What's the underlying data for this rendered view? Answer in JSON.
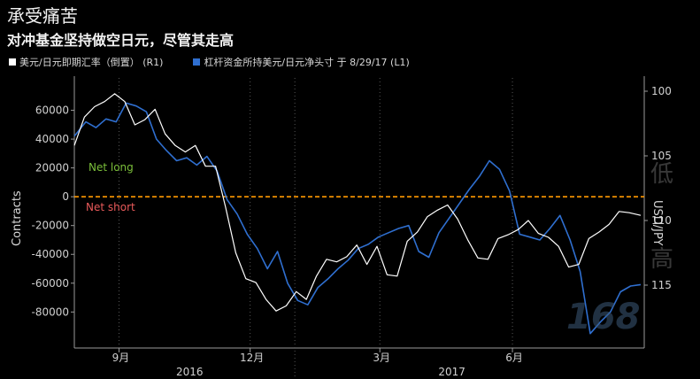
{
  "title": "承受痛苦",
  "subtitle": "对冲基金坚持做空日元，尽管其走高",
  "legend": {
    "left_series": "美元/日元即期汇率（倒置） (R1)",
    "right_series": "杠杆资金所持美元/日元净头寸 于 8/29/17 (L1)"
  },
  "annotations": {
    "net_long": "Net long",
    "net_short": "Net short"
  },
  "watermark": {
    "chars": [
      "低",
      "高"
    ],
    "number": "168"
  },
  "colors": {
    "usdjpy": "#ffffff",
    "positions": "#2f6fd0",
    "zero_line": "#ff9900",
    "net_long": "#7bbf3a",
    "net_short": "#e85a5a"
  },
  "chart_data": {
    "type": "line",
    "x_range": [
      "2016-08-01",
      "2017-08-29"
    ],
    "xticks": [
      {
        "date": "2016-09-01",
        "label": "9月"
      },
      {
        "date": "2016-12-01",
        "label": "12月"
      },
      {
        "date": "2017-03-01",
        "label": "3月"
      },
      {
        "date": "2017-06-01",
        "label": "6月"
      }
    ],
    "year_labels": [
      {
        "date": "2016-10-20",
        "label": "2016"
      },
      {
        "date": "2017-04-20",
        "label": "2017"
      }
    ],
    "left_axis": {
      "label": "Contracts",
      "ylim": [
        -105000,
        80000
      ],
      "ticks": [
        60000,
        40000,
        20000,
        0,
        -20000,
        -40000,
        -60000,
        -80000
      ]
    },
    "right_axis": {
      "label": "USD/JPY",
      "inverted": true,
      "ticks": [
        100,
        105,
        110,
        115
      ]
    },
    "series": [
      {
        "name": "美元/日元即期汇率（倒置） (R1)",
        "axis": "right",
        "points": [
          [
            "2016-08-01",
            104.2
          ],
          [
            "2016-08-08",
            102.0
          ],
          [
            "2016-08-15",
            101.2
          ],
          [
            "2016-08-22",
            100.8
          ],
          [
            "2016-08-29",
            100.2
          ],
          [
            "2016-09-05",
            100.8
          ],
          [
            "2016-09-12",
            102.6
          ],
          [
            "2016-09-19",
            102.2
          ],
          [
            "2016-09-26",
            101.4
          ],
          [
            "2016-10-03",
            103.3
          ],
          [
            "2016-10-10",
            104.2
          ],
          [
            "2016-10-17",
            104.7
          ],
          [
            "2016-10-24",
            104.2
          ],
          [
            "2016-10-31",
            105.8
          ],
          [
            "2016-11-07",
            105.8
          ],
          [
            "2016-11-14",
            109.0
          ],
          [
            "2016-11-21",
            112.5
          ],
          [
            "2016-11-28",
            114.5
          ],
          [
            "2016-12-05",
            114.8
          ],
          [
            "2016-12-12",
            116.1
          ],
          [
            "2016-12-19",
            117.0
          ],
          [
            "2016-12-26",
            116.6
          ],
          [
            "2017-01-02",
            115.5
          ],
          [
            "2017-01-09",
            116.1
          ],
          [
            "2017-01-16",
            114.3
          ],
          [
            "2017-01-23",
            113.0
          ],
          [
            "2017-01-30",
            113.2
          ],
          [
            "2017-02-06",
            112.8
          ],
          [
            "2017-02-13",
            111.9
          ],
          [
            "2017-02-20",
            113.4
          ],
          [
            "2017-02-27",
            112.0
          ],
          [
            "2017-03-06",
            114.2
          ],
          [
            "2017-03-13",
            114.3
          ],
          [
            "2017-03-20",
            111.6
          ],
          [
            "2017-03-27",
            110.9
          ],
          [
            "2017-04-03",
            109.7
          ],
          [
            "2017-04-10",
            109.2
          ],
          [
            "2017-04-17",
            108.8
          ],
          [
            "2017-04-24",
            109.9
          ],
          [
            "2017-05-01",
            111.5
          ],
          [
            "2017-05-08",
            112.9
          ],
          [
            "2017-05-15",
            113.0
          ],
          [
            "2017-05-22",
            111.4
          ],
          [
            "2017-05-29",
            111.1
          ],
          [
            "2017-06-05",
            110.7
          ],
          [
            "2017-06-12",
            110.0
          ],
          [
            "2017-06-19",
            111.0
          ],
          [
            "2017-06-26",
            111.3
          ],
          [
            "2017-07-03",
            112.0
          ],
          [
            "2017-07-10",
            113.6
          ],
          [
            "2017-07-17",
            113.4
          ],
          [
            "2017-07-24",
            111.4
          ],
          [
            "2017-07-31",
            110.9
          ],
          [
            "2017-08-07",
            110.3
          ],
          [
            "2017-08-14",
            109.3
          ],
          [
            "2017-08-21",
            109.4
          ],
          [
            "2017-08-29",
            109.6
          ]
        ]
      },
      {
        "name": "杠杆资金所持美元/日元净头寸 于 8/29/17 (L1)",
        "axis": "left",
        "points": [
          [
            "2016-08-01",
            42000
          ],
          [
            "2016-08-09",
            52000
          ],
          [
            "2016-08-16",
            48000
          ],
          [
            "2016-08-23",
            54000
          ],
          [
            "2016-08-30",
            52000
          ],
          [
            "2016-09-06",
            65000
          ],
          [
            "2016-09-13",
            63000
          ],
          [
            "2016-09-20",
            59000
          ],
          [
            "2016-09-27",
            40000
          ],
          [
            "2016-10-04",
            32000
          ],
          [
            "2016-10-11",
            25000
          ],
          [
            "2016-10-18",
            27000
          ],
          [
            "2016-10-25",
            22000
          ],
          [
            "2016-11-01",
            28000
          ],
          [
            "2016-11-08",
            18000
          ],
          [
            "2016-11-15",
            -2000
          ],
          [
            "2016-11-22",
            -12000
          ],
          [
            "2016-11-29",
            -26000
          ],
          [
            "2016-12-06",
            -36000
          ],
          [
            "2016-12-13",
            -50000
          ],
          [
            "2016-12-20",
            -38000
          ],
          [
            "2016-12-27",
            -60000
          ],
          [
            "2017-01-03",
            -72000
          ],
          [
            "2017-01-10",
            -75000
          ],
          [
            "2017-01-17",
            -63000
          ],
          [
            "2017-01-24",
            -57000
          ],
          [
            "2017-01-31",
            -50000
          ],
          [
            "2017-02-07",
            -44000
          ],
          [
            "2017-02-14",
            -36000
          ],
          [
            "2017-02-21",
            -33000
          ],
          [
            "2017-02-28",
            -28000
          ],
          [
            "2017-03-07",
            -25000
          ],
          [
            "2017-03-14",
            -22000
          ],
          [
            "2017-03-21",
            -20000
          ],
          [
            "2017-03-28",
            -38000
          ],
          [
            "2017-04-04",
            -42000
          ],
          [
            "2017-04-11",
            -25000
          ],
          [
            "2017-04-18",
            -15000
          ],
          [
            "2017-04-25",
            -5000
          ],
          [
            "2017-05-02",
            5000
          ],
          [
            "2017-05-09",
            14000
          ],
          [
            "2017-05-16",
            25000
          ],
          [
            "2017-05-23",
            19000
          ],
          [
            "2017-05-30",
            4000
          ],
          [
            "2017-06-06",
            -26000
          ],
          [
            "2017-06-13",
            -28000
          ],
          [
            "2017-06-20",
            -30000
          ],
          [
            "2017-06-27",
            -22000
          ],
          [
            "2017-07-04",
            -13000
          ],
          [
            "2017-07-11",
            -30000
          ],
          [
            "2017-07-18",
            -52000
          ],
          [
            "2017-07-25",
            -95000
          ],
          [
            "2017-08-01",
            -87000
          ],
          [
            "2017-08-08",
            -80000
          ],
          [
            "2017-08-15",
            -66000
          ],
          [
            "2017-08-22",
            -62000
          ],
          [
            "2017-08-29",
            -61000
          ]
        ]
      }
    ]
  }
}
